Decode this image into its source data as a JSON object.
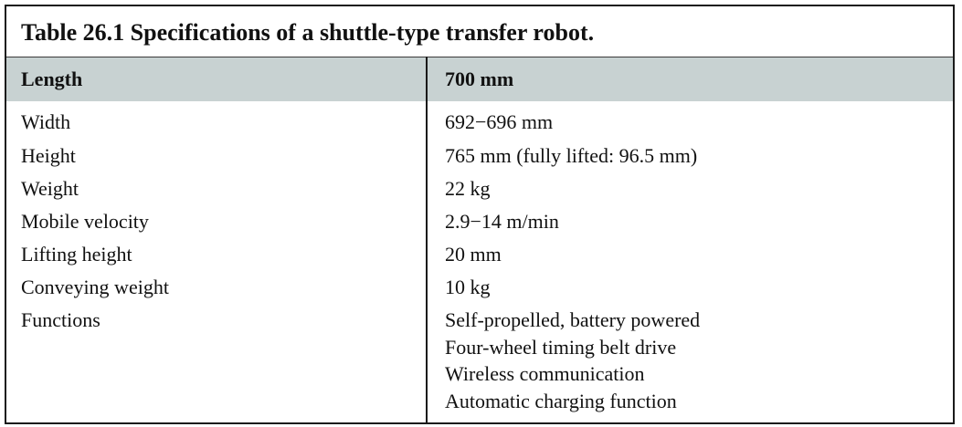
{
  "table": {
    "caption": "Table 26.1  Specifications of a shuttle-type transfer robot.",
    "header": {
      "label": "Length",
      "value": "700 mm"
    },
    "rows": [
      {
        "label": "Width",
        "value": [
          "692−696 mm"
        ]
      },
      {
        "label": "Height",
        "value": [
          "765 mm (fully lifted: 96.5 mm)"
        ]
      },
      {
        "label": "Weight",
        "value": [
          "22 kg"
        ]
      },
      {
        "label": "Mobile velocity",
        "value": [
          "2.9−14 m/min"
        ]
      },
      {
        "label": "Lifting height",
        "value": [
          "20 mm"
        ]
      },
      {
        "label": "Conveying weight",
        "value": [
          "10 kg"
        ]
      },
      {
        "label": "Functions",
        "value": [
          "Self-propelled, battery powered",
          "Four-wheel timing belt drive",
          "Wireless communication",
          "Automatic charging function"
        ]
      }
    ]
  }
}
